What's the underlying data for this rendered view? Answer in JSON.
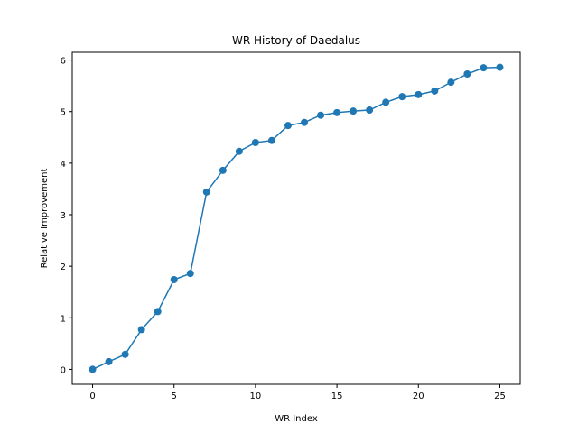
{
  "chart_data": {
    "type": "line",
    "title": "WR History of Daedalus",
    "xlabel": "WR Index",
    "ylabel": "Relative Improvement",
    "xlim": [
      -1.25,
      26.25
    ],
    "ylim": [
      -0.29,
      6.15
    ],
    "xticks": [
      0,
      5,
      10,
      15,
      20,
      25
    ],
    "yticks": [
      0,
      1,
      2,
      3,
      4,
      5,
      6
    ],
    "grid": false,
    "legend": "none",
    "series": [
      {
        "color": "#1f77b4",
        "marker": "circle",
        "x": [
          0,
          1,
          2,
          3,
          4,
          5,
          6,
          7,
          8,
          9,
          10,
          11,
          12,
          13,
          14,
          15,
          16,
          17,
          18,
          19,
          20,
          21,
          22,
          23,
          24,
          25
        ],
        "values": [
          0.0,
          0.15,
          0.29,
          0.77,
          1.12,
          1.74,
          1.86,
          3.44,
          3.86,
          4.23,
          4.4,
          4.44,
          4.73,
          4.79,
          4.93,
          4.98,
          5.01,
          5.03,
          5.18,
          5.29,
          5.33,
          5.4,
          5.57,
          5.73,
          5.85,
          5.86
        ]
      }
    ]
  }
}
